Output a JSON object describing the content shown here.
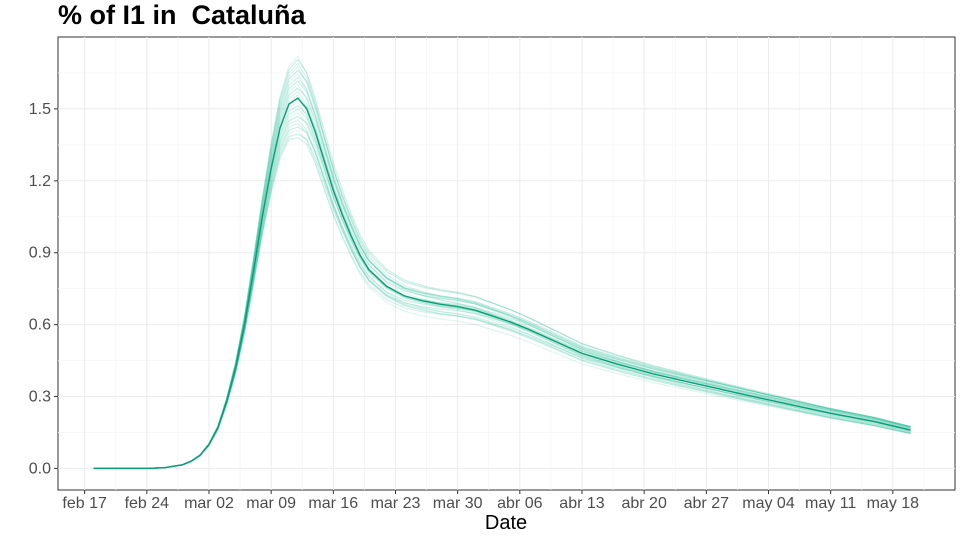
{
  "chart_data": {
    "type": "line",
    "title": "% of I1 in  Cataluña",
    "xlabel": "Date",
    "ylabel": "",
    "x_range": [
      "2020-02-14",
      "2020-05-25"
    ],
    "ylim": [
      -0.09,
      1.8
    ],
    "y_ticks": [
      0.0,
      0.3,
      0.6,
      0.9,
      1.2,
      1.5
    ],
    "x_ticks": [
      {
        "date": "2020-02-17",
        "label": "feb 17"
      },
      {
        "date": "2020-02-24",
        "label": "feb 24"
      },
      {
        "date": "2020-03-02",
        "label": "mar 02"
      },
      {
        "date": "2020-03-09",
        "label": "mar 09"
      },
      {
        "date": "2020-03-16",
        "label": "mar 16"
      },
      {
        "date": "2020-03-23",
        "label": "mar 23"
      },
      {
        "date": "2020-03-30",
        "label": "mar 30"
      },
      {
        "date": "2020-04-06",
        "label": "abr 06"
      },
      {
        "date": "2020-04-13",
        "label": "abr 13"
      },
      {
        "date": "2020-04-20",
        "label": "abr 20"
      },
      {
        "date": "2020-04-27",
        "label": "abr 27"
      },
      {
        "date": "2020-05-04",
        "label": "may 04"
      },
      {
        "date": "2020-05-11",
        "label": "may 11"
      },
      {
        "date": "2020-05-18",
        "label": "may 18"
      }
    ],
    "grid": true,
    "line_color": "#0eb58a",
    "series": [
      {
        "role": "central",
        "x": [
          "2020-02-18",
          "2020-02-21",
          "2020-02-24",
          "2020-02-26",
          "2020-02-28",
          "2020-02-29",
          "2020-03-01",
          "2020-03-02",
          "2020-03-03",
          "2020-03-04",
          "2020-03-05",
          "2020-03-06",
          "2020-03-07",
          "2020-03-08",
          "2020-03-09",
          "2020-03-10",
          "2020-03-11",
          "2020-03-12",
          "2020-03-13",
          "2020-03-14",
          "2020-03-15",
          "2020-03-16",
          "2020-03-17",
          "2020-03-18",
          "2020-03-19",
          "2020-03-20",
          "2020-03-22",
          "2020-03-24",
          "2020-03-26",
          "2020-03-28",
          "2020-03-30",
          "2020-04-01",
          "2020-04-03",
          "2020-04-05",
          "2020-04-07",
          "2020-04-10",
          "2020-04-13",
          "2020-04-17",
          "2020-04-21",
          "2020-04-25",
          "2020-05-01",
          "2020-05-06",
          "2020-05-11",
          "2020-05-16",
          "2020-05-20"
        ],
        "values": [
          0.0,
          0.0,
          0.0,
          0.003,
          0.015,
          0.03,
          0.055,
          0.1,
          0.17,
          0.28,
          0.42,
          0.6,
          0.82,
          1.05,
          1.25,
          1.42,
          1.52,
          1.545,
          1.5,
          1.4,
          1.28,
          1.16,
          1.06,
          0.97,
          0.89,
          0.83,
          0.76,
          0.72,
          0.7,
          0.685,
          0.675,
          0.66,
          0.635,
          0.61,
          0.58,
          0.53,
          0.48,
          0.435,
          0.395,
          0.36,
          0.31,
          0.27,
          0.23,
          0.195,
          0.16
        ]
      }
    ],
    "ensemble": {
      "count": 24,
      "peak_min": 1.38,
      "peak_max": 1.72,
      "end_min": 0.145,
      "end_max": 0.175
    }
  }
}
